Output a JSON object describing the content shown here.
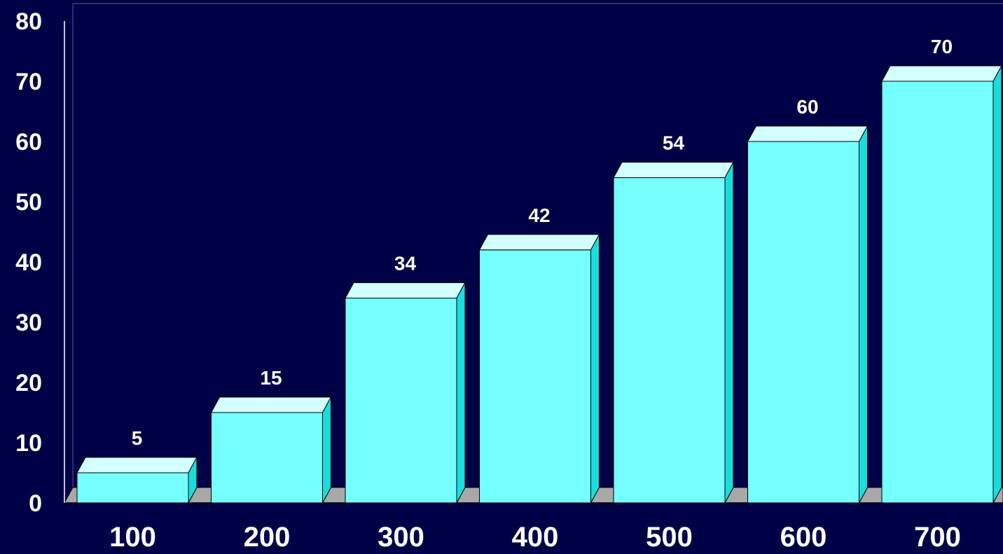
{
  "chart_data": {
    "type": "bar",
    "categories": [
      "100",
      "200",
      "300",
      "400",
      "500",
      "600",
      "700"
    ],
    "values": [
      5,
      15,
      34,
      42,
      54,
      60,
      70
    ],
    "data_labels": [
      "5",
      "15",
      "34",
      "42",
      "54",
      "60",
      "70"
    ],
    "y_ticks": [
      "0",
      "10",
      "20",
      "30",
      "40",
      "50",
      "60",
      "70",
      "80"
    ],
    "ylim": [
      0,
      80
    ],
    "title": "",
    "xlabel": "",
    "ylabel": "",
    "grid": false,
    "legend": "none",
    "style": "3d"
  },
  "colors": {
    "background": "#000046",
    "bar_front": "#75ffff",
    "bar_top": "#d3ffff",
    "bar_side": "#1bdcdc",
    "floor": "#a8a8a8",
    "text": "#ffffff",
    "axis": "#ffffff"
  }
}
